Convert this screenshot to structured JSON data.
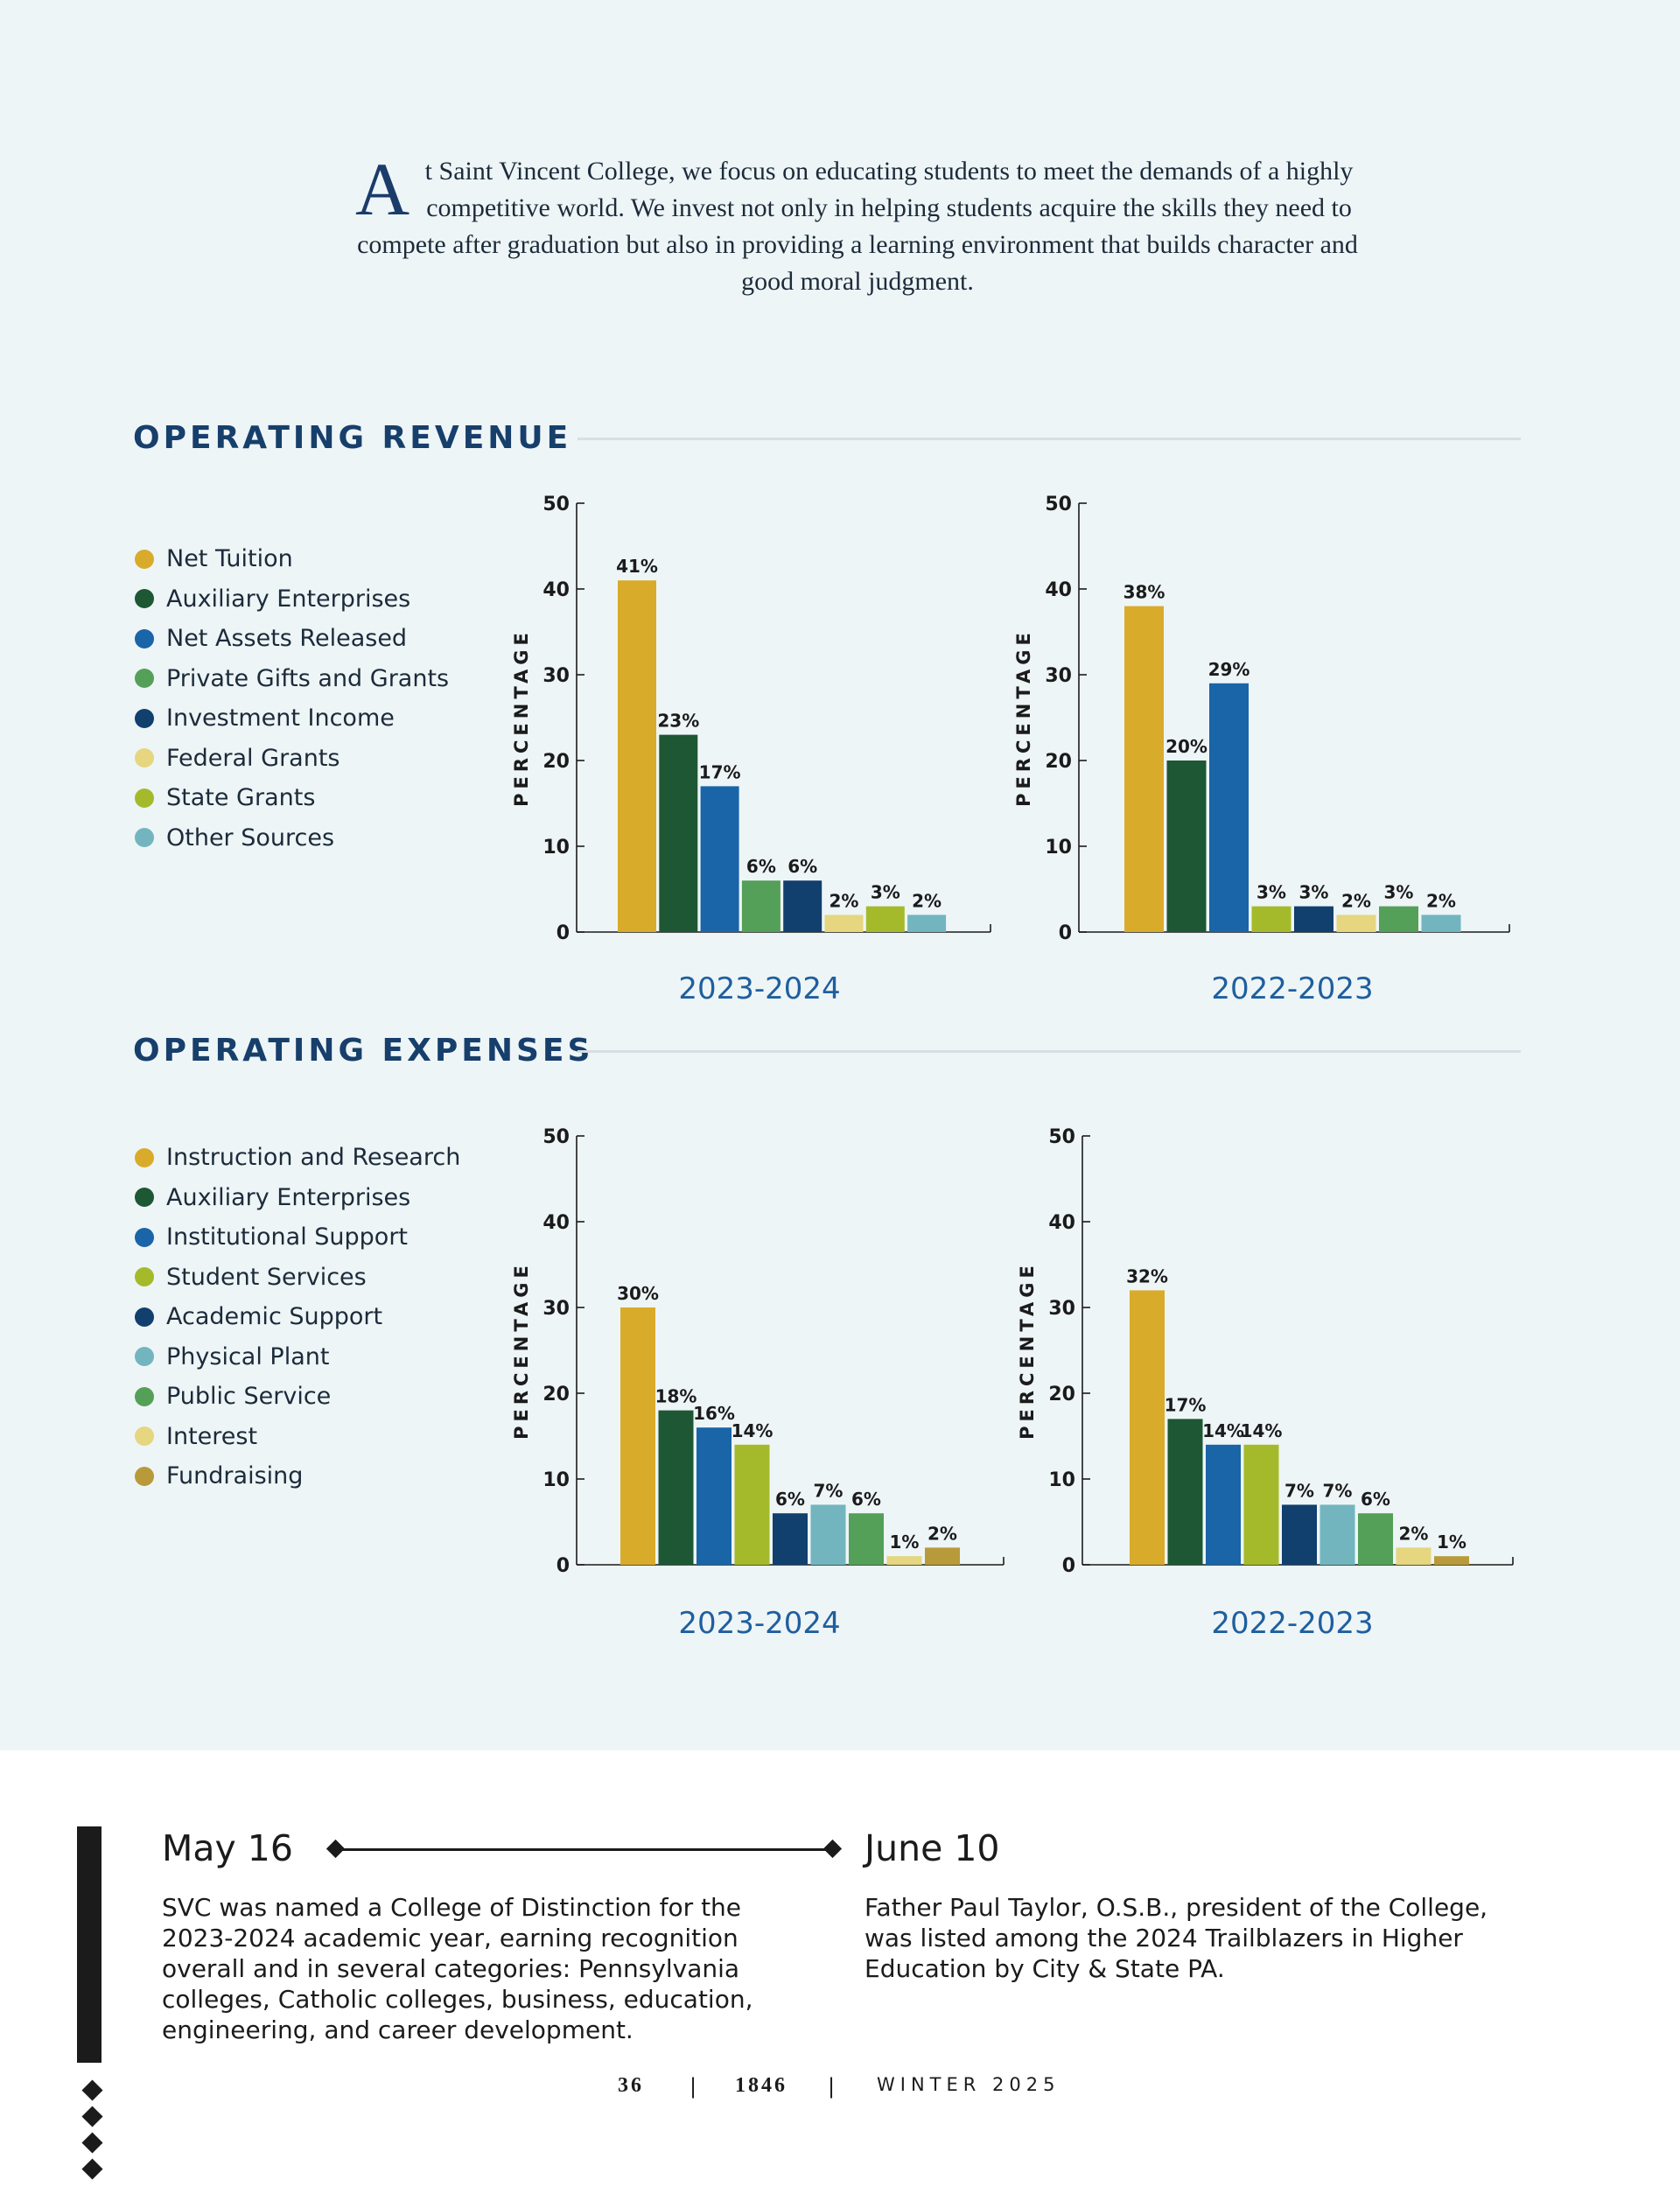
{
  "intro": {
    "dropcap": "A",
    "text": "t Saint Vincent College, we focus on educating students to meet the demands of a highly competitive world. We invest not only in helping students acquire the skills they need to compete after graduation but also in providing a learning environment that builds character and good moral judgment."
  },
  "revenue": {
    "title": "OPERATING REVENUE",
    "legend": [
      {
        "label": "Net Tuition",
        "color": "#d9ab2a"
      },
      {
        "label": "Auxiliary Enterprises",
        "color": "#1d5734"
      },
      {
        "label": "Net Assets Released",
        "color": "#1a64a8"
      },
      {
        "label": "Private Gifts and Grants",
        "color": "#54a058"
      },
      {
        "label": "Investment Income",
        "color": "#113f6e"
      },
      {
        "label": "Federal Grants",
        "color": "#e5d67f"
      },
      {
        "label": "State Grants",
        "color": "#a5ba2a"
      },
      {
        "label": "Other Sources",
        "color": "#72b5bf"
      }
    ]
  },
  "expenses": {
    "title": "OPERATING EXPENSES",
    "legend": [
      {
        "label": "Instruction and Research",
        "color": "#d9ab2a"
      },
      {
        "label": "Auxiliary Enterprises",
        "color": "#1d5734"
      },
      {
        "label": "Institutional Support",
        "color": "#1a64a8"
      },
      {
        "label": "Student Services",
        "color": "#a5ba2a"
      },
      {
        "label": "Academic Support",
        "color": "#113f6e"
      },
      {
        "label": "Physical Plant",
        "color": "#72b5bf"
      },
      {
        "label": "Public Service",
        "color": "#54a058"
      },
      {
        "label": "Interest",
        "color": "#e5d67f"
      },
      {
        "label": "Fundraising",
        "color": "#b89a3a"
      }
    ]
  },
  "chart_data": [
    {
      "type": "bar",
      "title": "2023-2024",
      "ylabel": "PERCENTAGE",
      "ylim": [
        0,
        50
      ],
      "yticks": [
        0,
        10,
        20,
        30,
        40,
        50
      ],
      "categories": [
        "Net Tuition",
        "Auxiliary Enterprises",
        "Net Assets Released",
        "Private Gifts and Grants",
        "Investment Income",
        "Federal Grants",
        "State Grants",
        "Other Sources"
      ],
      "values": [
        41,
        23,
        17,
        6,
        6,
        2,
        3,
        2
      ],
      "labels": [
        "41%",
        "23%",
        "17%",
        "6%",
        "6%",
        "2%",
        "3%",
        "2%"
      ],
      "colors": [
        "#d9ab2a",
        "#1d5734",
        "#1a64a8",
        "#54a058",
        "#113f6e",
        "#e5d67f",
        "#a5ba2a",
        "#72b5bf"
      ]
    },
    {
      "type": "bar",
      "title": "2022-2023",
      "ylabel": "PERCENTAGE",
      "ylim": [
        0,
        50
      ],
      "yticks": [
        0,
        10,
        20,
        30,
        40,
        50
      ],
      "categories": [
        "Net Tuition",
        "Auxiliary Enterprises",
        "Net Assets Released",
        "State Grants",
        "Investment Income",
        "Federal Grants",
        "Private Gifts and Grants",
        "Other Sources"
      ],
      "values": [
        38,
        20,
        29,
        3,
        3,
        2,
        3,
        2
      ],
      "labels": [
        "38%",
        "20%",
        "29%",
        "3%",
        "3%",
        "2%",
        "3%",
        "2%"
      ],
      "colors": [
        "#d9ab2a",
        "#1d5734",
        "#1a64a8",
        "#a5ba2a",
        "#113f6e",
        "#e5d67f",
        "#54a058",
        "#72b5bf"
      ]
    },
    {
      "type": "bar",
      "title": "2023-2024",
      "ylabel": "PERCENTAGE",
      "ylim": [
        0,
        50
      ],
      "yticks": [
        0,
        10,
        20,
        30,
        40,
        50
      ],
      "categories": [
        "Instruction and Research",
        "Auxiliary Enterprises",
        "Institutional Support",
        "Student Services",
        "Academic Support",
        "Physical Plant",
        "Public Service",
        "Interest",
        "Fundraising"
      ],
      "values": [
        30,
        18,
        16,
        14,
        6,
        7,
        6,
        1,
        2
      ],
      "labels": [
        "30%",
        "18%",
        "16%",
        "14%",
        "6%",
        "7%",
        "6%",
        "1%",
        "2%"
      ],
      "colors": [
        "#d9ab2a",
        "#1d5734",
        "#1a64a8",
        "#a5ba2a",
        "#113f6e",
        "#72b5bf",
        "#54a058",
        "#e5d67f",
        "#b89a3a"
      ]
    },
    {
      "type": "bar",
      "title": "2022-2023",
      "ylabel": "PERCENTAGE",
      "ylim": [
        0,
        50
      ],
      "yticks": [
        0,
        10,
        20,
        30,
        40,
        50
      ],
      "categories": [
        "Instruction and Research",
        "Auxiliary Enterprises",
        "Institutional Support",
        "Student Services",
        "Academic Support",
        "Physical Plant",
        "Public Service",
        "Interest",
        "Fundraising"
      ],
      "values": [
        32,
        17,
        14,
        14,
        7,
        7,
        6,
        2,
        1
      ],
      "labels": [
        "32%",
        "17%",
        "14%",
        "14%",
        "7%",
        "7%",
        "6%",
        "2%",
        "1%"
      ],
      "colors": [
        "#d9ab2a",
        "#1d5734",
        "#1a64a8",
        "#a5ba2a",
        "#113f6e",
        "#72b5bf",
        "#54a058",
        "#e5d67f",
        "#b89a3a"
      ]
    }
  ],
  "timeline": {
    "left": {
      "date": "May 16",
      "text": "SVC was named a College of Distinction for the 2023-2024 academic year, earning recognition overall and in several categories: Pennsylvania colleges, Catholic colleges, business, education, engineering, and career development."
    },
    "right": {
      "date": "June 10",
      "text": "Father Paul Taylor, O.S.B., president of the College, was listed among the 2024 Trailblazers in Higher Education by City & State PA."
    }
  },
  "footer": {
    "page": "36",
    "sep": "|",
    "magazine": "1846",
    "issue": "WINTER 2025"
  }
}
